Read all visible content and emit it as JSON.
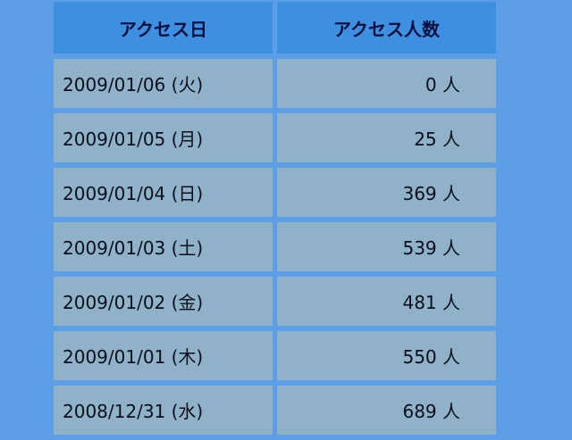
{
  "table": {
    "headers": [
      "アクセス日",
      "アクセス人数"
    ],
    "rows": [
      {
        "date": "2009/01/06 (火)",
        "count": "0 人"
      },
      {
        "date": "2009/01/05 (月)",
        "count": "25 人"
      },
      {
        "date": "2009/01/04 (日)",
        "count": "369 人"
      },
      {
        "date": "2009/01/03 (土)",
        "count": "539 人"
      },
      {
        "date": "2009/01/02 (金)",
        "count": "481 人"
      },
      {
        "date": "2009/01/01 (木)",
        "count": "550 人"
      },
      {
        "date": "2008/12/31 (水)",
        "count": "689 人"
      }
    ]
  },
  "colors": {
    "background": "#5c9fe6",
    "header": "#3d8fe0",
    "cell": "#90b2c8"
  }
}
